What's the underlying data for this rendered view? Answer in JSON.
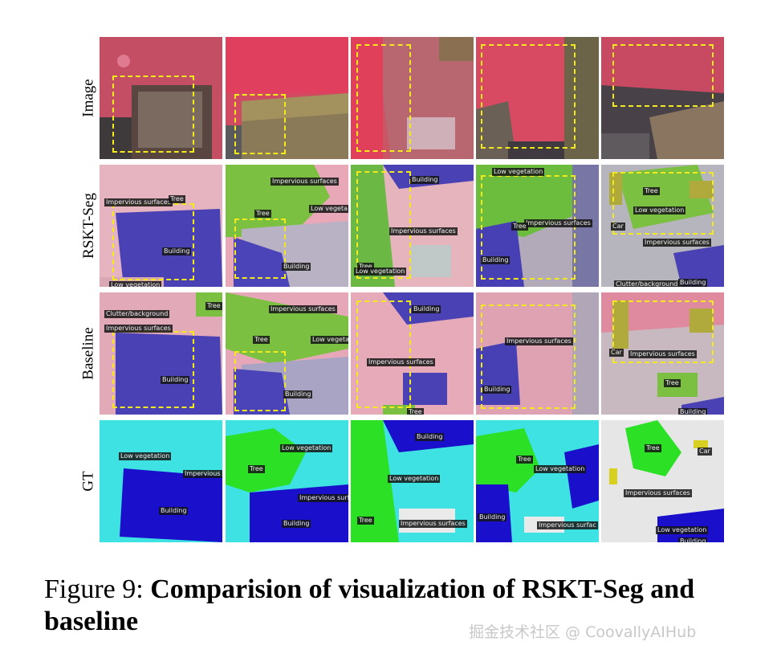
{
  "figure": {
    "rows": [
      {
        "label": "Image"
      },
      {
        "label": "RSKT-Seg"
      },
      {
        "label": "Baseline"
      },
      {
        "label": "GT"
      }
    ],
    "tags": {
      "impervious": "Impervious surfaces",
      "low_veg": "Low vegetation",
      "low_veg_short": "Low vegeta",
      "tree": "Tree",
      "building": "Building",
      "car": "Car",
      "clutter": "Clutter/background",
      "impervious_cut": "Impervious",
      "impervious_surf": "Impervious surf",
      "impervious_surfac": "Impervious surfac",
      "low_vegetation_cut": "Low vegetat"
    }
  },
  "caption": {
    "prefix": "Figure 9: ",
    "title": "Comparision of visualization of RSKT-Seg and baseline"
  },
  "watermark": "掘金技术社区 @ CoovallyAIHub"
}
